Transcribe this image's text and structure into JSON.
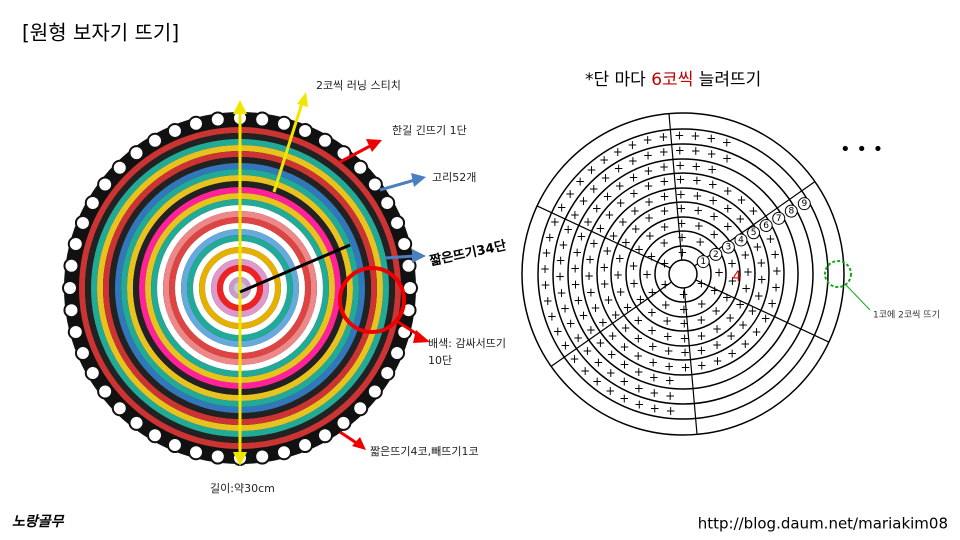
{
  "header": {
    "title": "[원형 보자기 뜨기]"
  },
  "photo": {
    "labels": {
      "running": "2코씩 러닝 스티치",
      "double": "한길 긴뜨기 1단",
      "loops": "고리52개",
      "single": "짧은뜨기34단",
      "color1": "배색: 감싸서뜨기",
      "color2": "10단",
      "edge": "짧은뜨기4코,빼뜨기1코",
      "length": "길이:약30cm"
    }
  },
  "diagram": {
    "title": {
      "prefix": "*단 마다 ",
      "highlight": "6코씩",
      "suffix": " 늘려뜨기"
    },
    "numbers": [
      "1",
      "2",
      "3",
      "4",
      "5",
      "6",
      "7",
      "8",
      "9"
    ],
    "red_number": "4",
    "note": "1코에 2코씩 뜨기"
  },
  "footer": {
    "author": "노랑골무",
    "url": "http://blog.daum.net/mariakim08"
  }
}
